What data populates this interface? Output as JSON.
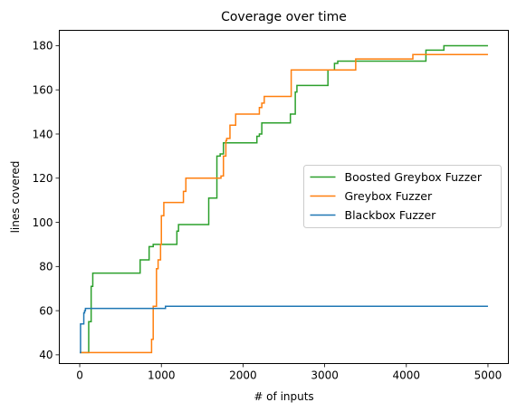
{
  "chart_data": {
    "type": "line",
    "title": "Coverage over time",
    "xlabel": "# of inputs",
    "ylabel": "lines covered",
    "xlim": [
      -250,
      5250
    ],
    "ylim": [
      36.05,
      186.95
    ],
    "xticks": [
      0,
      1000,
      2000,
      3000,
      4000,
      5000
    ],
    "yticks": [
      40,
      60,
      80,
      100,
      120,
      140,
      160,
      180
    ],
    "grid": false,
    "legend_position": "center-right",
    "series": [
      {
        "name": "Boosted Greybox Fuzzer",
        "color": "#2ca02c",
        "step": true,
        "points": [
          [
            0,
            41
          ],
          [
            110,
            41
          ],
          [
            110,
            55
          ],
          [
            140,
            55
          ],
          [
            140,
            71
          ],
          [
            160,
            71
          ],
          [
            160,
            77
          ],
          [
            740,
            77
          ],
          [
            740,
            83
          ],
          [
            850,
            83
          ],
          [
            850,
            89
          ],
          [
            900,
            89
          ],
          [
            900,
            90
          ],
          [
            1190,
            90
          ],
          [
            1190,
            96
          ],
          [
            1210,
            96
          ],
          [
            1210,
            99
          ],
          [
            1580,
            99
          ],
          [
            1580,
            111
          ],
          [
            1680,
            111
          ],
          [
            1680,
            130
          ],
          [
            1720,
            130
          ],
          [
            1720,
            131
          ],
          [
            1760,
            131
          ],
          [
            1760,
            136
          ],
          [
            2170,
            136
          ],
          [
            2170,
            139
          ],
          [
            2200,
            139
          ],
          [
            2200,
            140
          ],
          [
            2230,
            140
          ],
          [
            2230,
            145
          ],
          [
            2580,
            145
          ],
          [
            2580,
            149
          ],
          [
            2640,
            149
          ],
          [
            2640,
            159
          ],
          [
            2660,
            159
          ],
          [
            2660,
            162
          ],
          [
            3040,
            162
          ],
          [
            3040,
            169
          ],
          [
            3120,
            169
          ],
          [
            3120,
            172
          ],
          [
            3160,
            172
          ],
          [
            3160,
            173
          ],
          [
            4240,
            173
          ],
          [
            4240,
            178
          ],
          [
            4460,
            178
          ],
          [
            4460,
            180
          ],
          [
            5000,
            180
          ]
        ]
      },
      {
        "name": "Greybox Fuzzer",
        "color": "#ff7f0e",
        "step": true,
        "points": [
          [
            0,
            41
          ],
          [
            880,
            41
          ],
          [
            880,
            47
          ],
          [
            900,
            47
          ],
          [
            900,
            62
          ],
          [
            940,
            62
          ],
          [
            940,
            79
          ],
          [
            960,
            79
          ],
          [
            960,
            83
          ],
          [
            990,
            83
          ],
          [
            990,
            90
          ],
          [
            1000,
            90
          ],
          [
            1000,
            103
          ],
          [
            1030,
            103
          ],
          [
            1030,
            109
          ],
          [
            1270,
            109
          ],
          [
            1270,
            114
          ],
          [
            1300,
            114
          ],
          [
            1300,
            120
          ],
          [
            1730,
            120
          ],
          [
            1730,
            121
          ],
          [
            1760,
            121
          ],
          [
            1760,
            130
          ],
          [
            1790,
            130
          ],
          [
            1790,
            137
          ],
          [
            1800,
            137
          ],
          [
            1800,
            138
          ],
          [
            1840,
            138
          ],
          [
            1840,
            144
          ],
          [
            1910,
            144
          ],
          [
            1910,
            149
          ],
          [
            2200,
            149
          ],
          [
            2200,
            152
          ],
          [
            2230,
            152
          ],
          [
            2230,
            154
          ],
          [
            2260,
            154
          ],
          [
            2260,
            157
          ],
          [
            2590,
            157
          ],
          [
            2590,
            169
          ],
          [
            3380,
            169
          ],
          [
            3380,
            174
          ],
          [
            4080,
            174
          ],
          [
            4080,
            176
          ],
          [
            5000,
            176
          ]
        ]
      },
      {
        "name": "Blackbox Fuzzer",
        "color": "#1f77b4",
        "step": true,
        "points": [
          [
            0,
            41
          ],
          [
            10,
            41
          ],
          [
            10,
            54
          ],
          [
            50,
            54
          ],
          [
            50,
            59
          ],
          [
            60,
            59
          ],
          [
            60,
            60
          ],
          [
            70,
            60
          ],
          [
            70,
            61
          ],
          [
            1050,
            61
          ],
          [
            1050,
            62
          ],
          [
            5000,
            62
          ]
        ]
      }
    ]
  }
}
